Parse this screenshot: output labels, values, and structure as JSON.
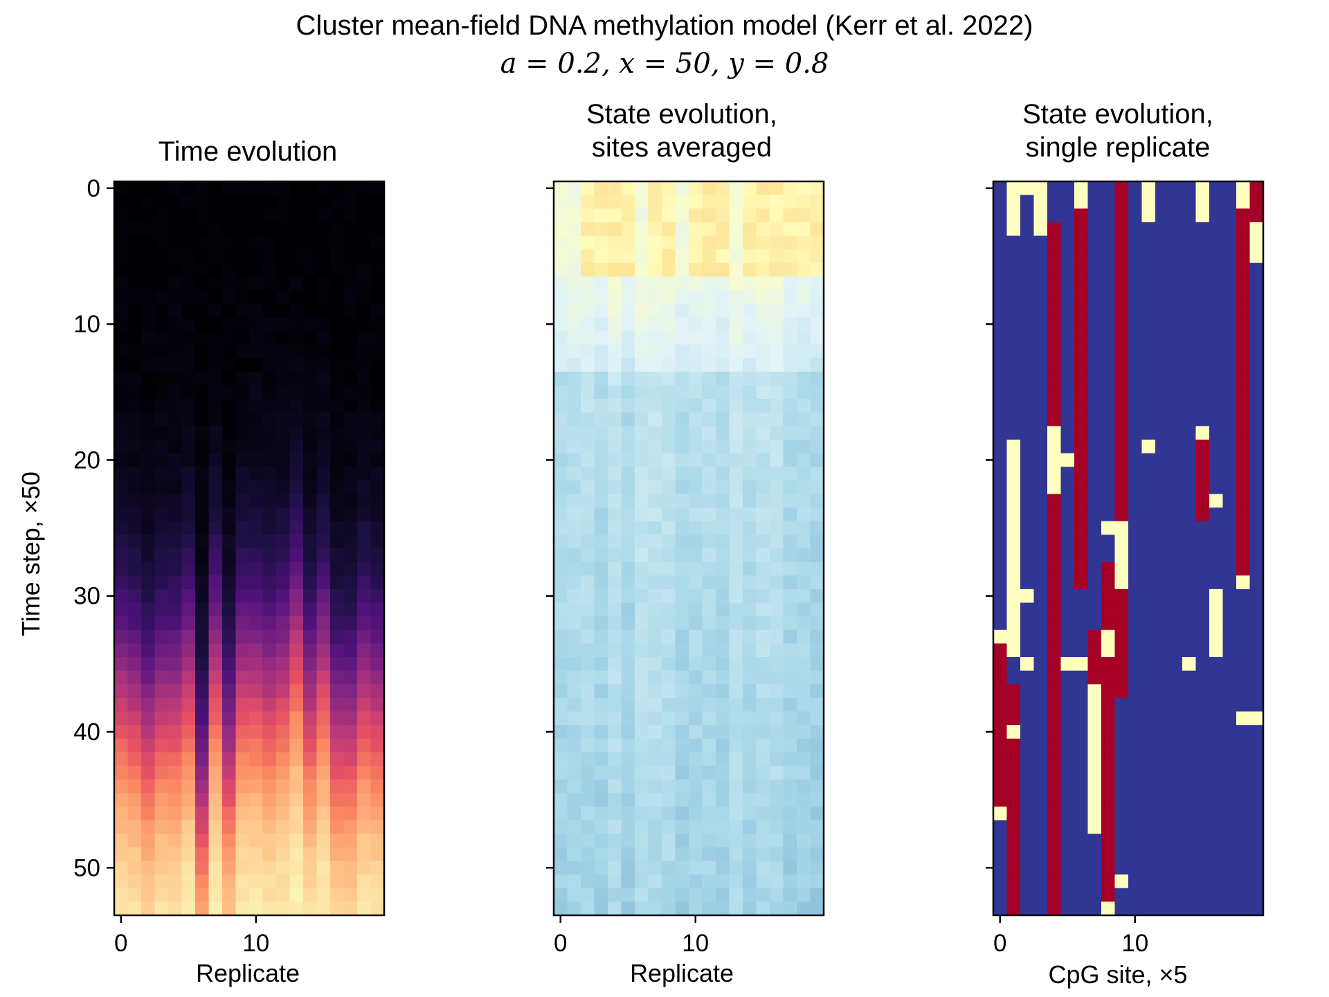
{
  "figure": {
    "title": "Cluster mean-field DNA methylation model (Kerr et al. 2022)",
    "subtitle": "a = 0.2, x = 50, y = 0.8"
  },
  "chart_data": [
    {
      "type": "heatmap",
      "title": "Time evolution",
      "xlabel": "Replicate",
      "ylabel": "Time step, ×50",
      "colormap": "magma",
      "n_cols": 20,
      "n_rows": 54,
      "xticks": [
        0,
        10
      ],
      "yticks": [
        0,
        10,
        20,
        30,
        40,
        50
      ],
      "xlim": [
        -0.5,
        19.5
      ],
      "ylim": [
        53.5,
        -0.5
      ],
      "values_description": "fraction methylated rising from 0 (black) at t=0 to 1 (pale yellow) by t≈45–53",
      "transition_midpoints": [
        37,
        38,
        40,
        38,
        38,
        36,
        45,
        35,
        42,
        36,
        36,
        37,
        36,
        33,
        38,
        35,
        40,
        40,
        37,
        38
      ]
    },
    {
      "type": "heatmap",
      "title": "State evolution,\nsites averaged",
      "xlabel": "Replicate",
      "colormap": "RdYlBu",
      "n_cols": 20,
      "n_rows": 54,
      "xticks": [
        0,
        10
      ],
      "values_description": "mean site state; pale yellow near top (t<7) fading to light blue for later time steps"
    },
    {
      "type": "heatmap",
      "title": "State evolution,\nsingle replicate",
      "xlabel": "CpG site, ×5",
      "colormap": "RdYlBu (three states: red = methylated, yellow = hemimethylated, blue = unmethylated)",
      "n_cols": 20,
      "n_rows": 54,
      "xticks": [
        0,
        10
      ],
      "state_colors": {
        "methylated": "#a50026",
        "hemi": "#ffffbf",
        "unmethylated": "#313695"
      }
    }
  ],
  "colors": {
    "axis": "#000000",
    "background": "#ffffff"
  }
}
